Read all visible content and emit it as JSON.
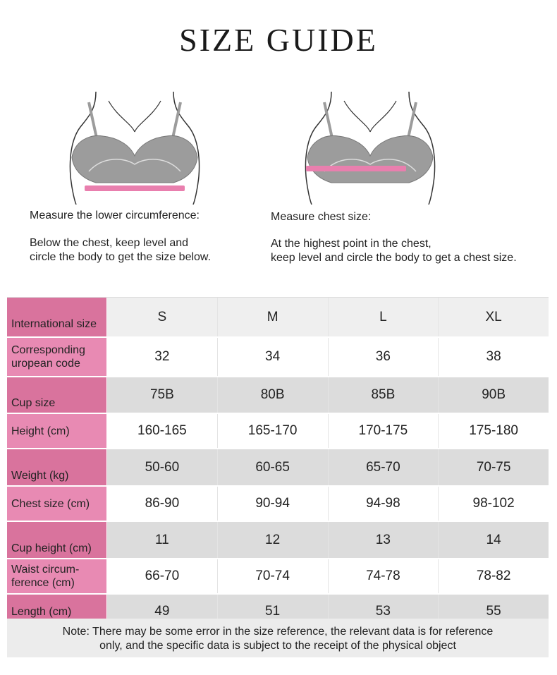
{
  "title": "SIZE GUIDE",
  "left_guide": {
    "heading": "Measure the lower circumference:",
    "line1": "Below the chest, keep level and",
    "line2": "circle the body to get the size below."
  },
  "right_guide": {
    "heading": "Measure chest size:",
    "line1": "At the highest point in the chest,",
    "line2": "keep level and circle the body to get a chest size."
  },
  "colors": {
    "label_pink": "#d9739d",
    "tape_pink": "#e97fae",
    "bra_grey": "#9c9c9c"
  },
  "table": {
    "header": {
      "label": "International size",
      "values": [
        "S",
        "M",
        "L",
        "XL"
      ]
    },
    "rows": [
      {
        "label": "Corresponding uropean code",
        "values": [
          "32",
          "34",
          "36",
          "38"
        ]
      },
      {
        "label": "Cup size",
        "values": [
          "75B",
          "80B",
          "85B",
          "90B"
        ]
      },
      {
        "label": "Height (cm)",
        "values": [
          "160-165",
          "165-170",
          "170-175",
          "175-180"
        ]
      },
      {
        "label": "Weight (kg)",
        "values": [
          "50-60",
          "60-65",
          "65-70",
          "70-75"
        ]
      },
      {
        "label": "Chest size (cm)",
        "values": [
          "86-90",
          "90-94",
          "94-98",
          "98-102"
        ]
      },
      {
        "label": "Cup height (cm)",
        "values": [
          "11",
          "12",
          "13",
          "14"
        ]
      },
      {
        "label": "Waist circum- ference (cm)",
        "values": [
          "66-70",
          "70-74",
          "74-78",
          "78-82"
        ]
      },
      {
        "label": "Length (cm)",
        "values": [
          "49",
          "51",
          "53",
          "55"
        ]
      }
    ]
  },
  "note": {
    "line1": "Note: There may be some error in the size reference, the relevant data is for reference",
    "line2": "only, and the specific data is subject to the receipt of the physical object"
  }
}
